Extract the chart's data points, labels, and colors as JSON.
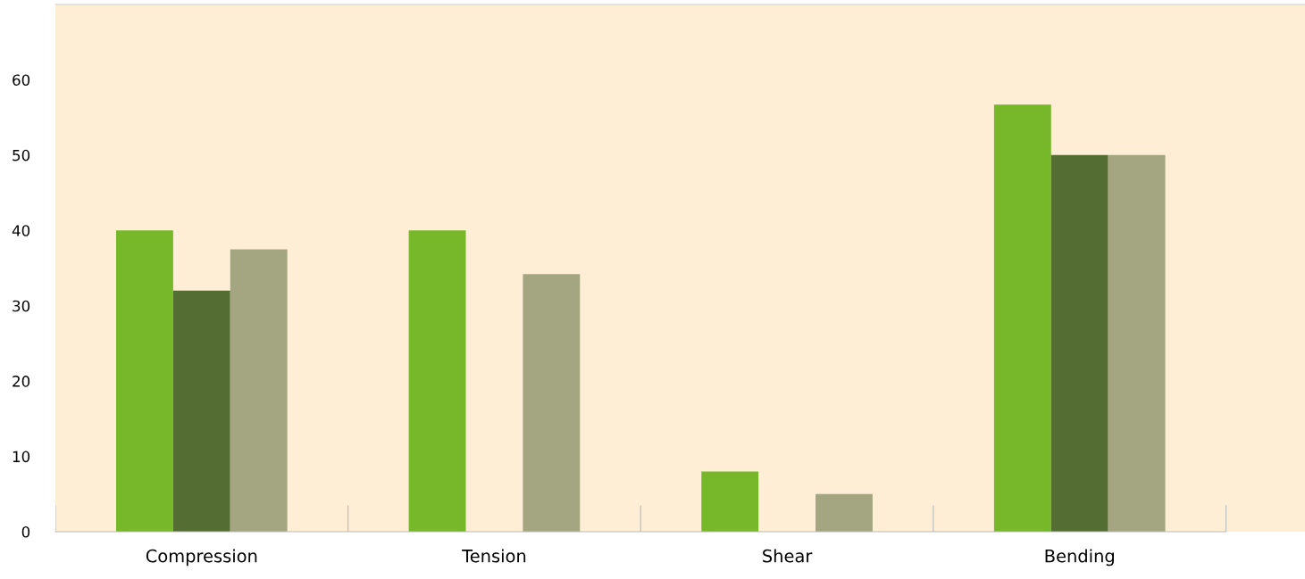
{
  "chart_data": {
    "type": "bar",
    "categories": [
      "Compression",
      "Tension",
      "Shear",
      "Bending"
    ],
    "series": [
      {
        "color": "#77b72a",
        "values": [
          40,
          40,
          8,
          56.7
        ]
      },
      {
        "color": "#546d33",
        "values": [
          32,
          null,
          null,
          50
        ]
      },
      {
        "color": "#a4a682",
        "values": [
          37.5,
          34.2,
          5,
          50
        ]
      }
    ],
    "ylim": [
      0,
      70
    ],
    "yticks": [
      0,
      10,
      20,
      30,
      40,
      50,
      60
    ],
    "grid": false
  }
}
